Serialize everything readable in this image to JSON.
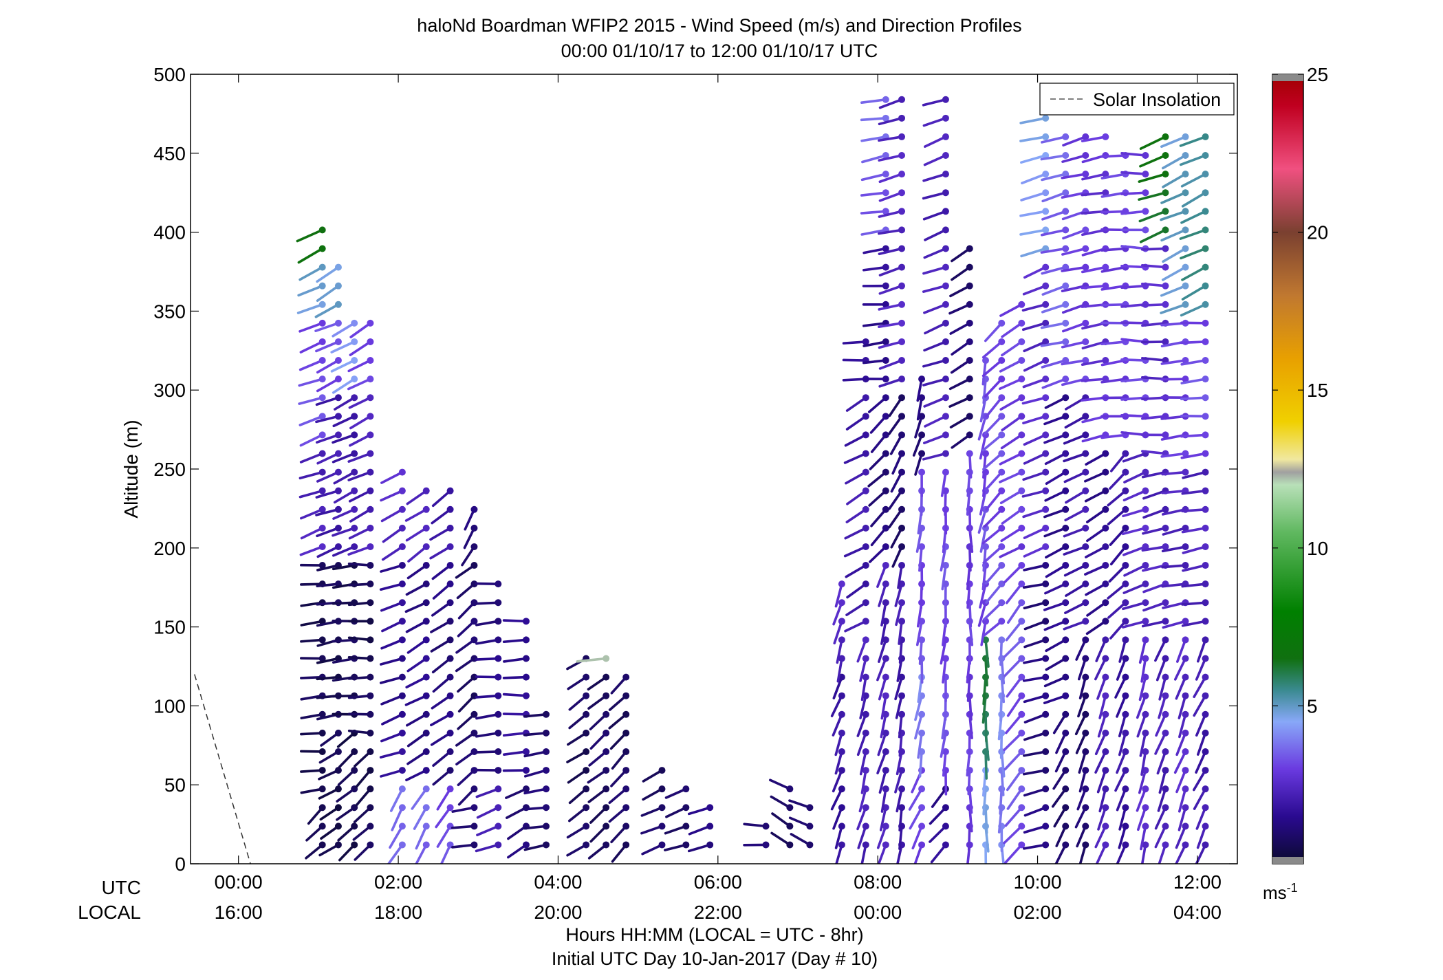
{
  "title_line1": "haloNd Boardman WFIP2 2015 - Wind Speed (m/s) and Direction Profiles",
  "title_line2": "00:00 01/10/17 to 12:00 01/10/17  UTC",
  "ylabel": "Altitude (m)",
  "row_utc": "UTC",
  "row_local": "LOCAL",
  "xlabel_line1": "Hours HH:MM  (LOCAL = UTC - 8hr)",
  "xlabel_line2": "Initial UTC Day 10-Jan-2017 (Day # 10)",
  "legend_label": "Solar Insolation",
  "colorbar_unit": "ms",
  "colorbar_unit_sup": "-1",
  "chart_data": {
    "type": "wind barb profile (time-height)",
    "x_range_hours_utc": [
      -0.6,
      12.5
    ],
    "ylim": [
      0,
      500
    ],
    "y_ticks": [
      "0",
      "50",
      "100",
      "150",
      "200",
      "250",
      "300",
      "350",
      "400",
      "450",
      "500"
    ],
    "x_ticks_utc": [
      "00:00",
      "02:00",
      "04:00",
      "06:00",
      "08:00",
      "10:00",
      "12:00"
    ],
    "x_ticks_local": [
      "16:00",
      "18:00",
      "20:00",
      "22:00",
      "00:00",
      "02:00",
      "04:00"
    ],
    "colorbar_range": [
      0,
      25
    ],
    "colorbar_ticks": [
      "5",
      "10",
      "15",
      "20",
      "25"
    ],
    "colorbar_stops": [
      {
        "v": 0,
        "color": "#0a0a2e"
      },
      {
        "v": 1.5,
        "color": "#2a0a90"
      },
      {
        "v": 3,
        "color": "#6a3ae0"
      },
      {
        "v": 4.5,
        "color": "#88a8f8"
      },
      {
        "v": 5.5,
        "color": "#3a8a90"
      },
      {
        "v": 6.5,
        "color": "#107010"
      },
      {
        "v": 8,
        "color": "#008000"
      },
      {
        "v": 10.5,
        "color": "#60b860"
      },
      {
        "v": 12,
        "color": "#b8e0b8"
      },
      {
        "v": 12.4,
        "color": "#a0a0a0"
      },
      {
        "v": 12.8,
        "color": "#f0e8a0"
      },
      {
        "v": 14,
        "color": "#f0d000"
      },
      {
        "v": 16,
        "color": "#e8a000"
      },
      {
        "v": 18,
        "color": "#c07830"
      },
      {
        "v": 20,
        "color": "#7a4030"
      },
      {
        "v": 22,
        "color": "#f05080"
      },
      {
        "v": 24,
        "color": "#c00020"
      },
      {
        "v": 25,
        "color": "#a00000"
      }
    ],
    "solar_insolation": {
      "x_hours_utc": [
        -0.55,
        0.15
      ],
      "y": [
        120,
        0
      ]
    },
    "profiles": [
      {
        "t": 1.05,
        "top": 410,
        "seg": [
          [
            0,
            40,
            0.4,
            45
          ],
          [
            40,
            200,
            0.6,
            85
          ],
          [
            200,
            260,
            2.3,
            70
          ],
          [
            260,
            350,
            3.2,
            70
          ],
          [
            350,
            380,
            4.8,
            65
          ],
          [
            380,
            410,
            6.5,
            65
          ]
        ]
      },
      {
        "t": 1.25,
        "top": 385,
        "seg": [
          [
            0,
            90,
            0.5,
            60
          ],
          [
            90,
            200,
            0.6,
            80
          ],
          [
            200,
            300,
            2.0,
            70
          ],
          [
            300,
            350,
            3.2,
            65
          ],
          [
            350,
            385,
            4.8,
            60
          ]
        ]
      },
      {
        "t": 1.45,
        "top": 350,
        "seg": [
          [
            0,
            90,
            0.5,
            50
          ],
          [
            90,
            200,
            0.6,
            85
          ],
          [
            200,
            300,
            2.0,
            65
          ],
          [
            300,
            350,
            4.2,
            60
          ]
        ]
      },
      {
        "t": 1.65,
        "top": 350,
        "seg": [
          [
            0,
            80,
            0.6,
            45
          ],
          [
            80,
            200,
            0.6,
            90
          ],
          [
            200,
            300,
            2.2,
            65
          ],
          [
            300,
            350,
            3.2,
            60
          ]
        ]
      },
      {
        "t": 2.05,
        "top": 255,
        "seg": [
          [
            0,
            50,
            3.8,
            30
          ],
          [
            50,
            200,
            1.5,
            70
          ],
          [
            200,
            255,
            2.5,
            60
          ]
        ]
      },
      {
        "t": 2.35,
        "top": 245,
        "seg": [
          [
            0,
            50,
            3.5,
            30
          ],
          [
            50,
            200,
            1.4,
            60
          ],
          [
            200,
            245,
            2.2,
            55
          ]
        ]
      },
      {
        "t": 2.65,
        "top": 245,
        "seg": [
          [
            0,
            50,
            3.2,
            30
          ],
          [
            50,
            200,
            1.2,
            55
          ],
          [
            200,
            245,
            2.0,
            55
          ]
        ]
      },
      {
        "t": 2.95,
        "top": 235,
        "seg": [
          [
            0,
            40,
            1.2,
            80
          ],
          [
            40,
            200,
            0.9,
            50
          ],
          [
            200,
            235,
            1.2,
            30
          ]
        ]
      },
      {
        "t": 3.25,
        "top": 180,
        "seg": [
          [
            0,
            50,
            2.0,
            70
          ],
          [
            50,
            180,
            1.3,
            85
          ]
        ]
      },
      {
        "t": 3.6,
        "top": 160,
        "seg": [
          [
            0,
            50,
            1.2,
            60
          ],
          [
            50,
            160,
            1.6,
            88
          ]
        ]
      },
      {
        "t": 3.85,
        "top": 100,
        "seg": [
          [
            0,
            100,
            1.0,
            80
          ]
        ]
      },
      {
        "t": 4.35,
        "top": 140,
        "seg": [
          [
            0,
            140,
            0.7,
            55
          ]
        ]
      },
      {
        "t": 4.6,
        "top": 130,
        "seg": [
          [
            0,
            120,
            0.8,
            50
          ],
          [
            120,
            130,
            12.4,
            85
          ]
        ]
      },
      {
        "t": 4.85,
        "top": 120,
        "seg": [
          [
            0,
            120,
            0.8,
            45
          ]
        ]
      },
      {
        "t": 5.3,
        "top": 70,
        "seg": [
          [
            0,
            70,
            0.9,
            65
          ]
        ]
      },
      {
        "t": 5.6,
        "top": 50,
        "seg": [
          [
            0,
            50,
            1.0,
            70
          ]
        ]
      },
      {
        "t": 5.9,
        "top": 40,
        "seg": [
          [
            0,
            40,
            1.2,
            75
          ]
        ]
      },
      {
        "t": 6.6,
        "top": 25,
        "seg": [
          [
            0,
            25,
            1.0,
            95
          ]
        ]
      },
      {
        "t": 6.9,
        "top": 55,
        "seg": [
          [
            0,
            55,
            0.9,
            120
          ]
        ]
      },
      {
        "t": 7.15,
        "top": 45,
        "seg": [
          [
            0,
            45,
            0.8,
            115
          ]
        ]
      },
      {
        "t": 7.55,
        "top": 180,
        "seg": [
          [
            0,
            120,
            1.8,
            20
          ],
          [
            120,
            180,
            2.4,
            15
          ]
        ]
      },
      {
        "t": 7.85,
        "top": 340,
        "seg": [
          [
            0,
            150,
            2.2,
            15
          ],
          [
            150,
            300,
            2.0,
            60
          ],
          [
            300,
            340,
            1.5,
            85
          ]
        ]
      },
      {
        "t": 8.1,
        "top": 490,
        "seg": [
          [
            0,
            200,
            2.2,
            15
          ],
          [
            200,
            300,
            1.2,
            45
          ],
          [
            300,
            390,
            1.5,
            85
          ],
          [
            390,
            490,
            3.5,
            80
          ]
        ]
      },
      {
        "t": 8.3,
        "top": 490,
        "seg": [
          [
            0,
            200,
            2.0,
            10
          ],
          [
            200,
            300,
            1.0,
            30
          ],
          [
            300,
            490,
            2.4,
            75
          ]
        ]
      },
      {
        "t": 8.55,
        "top": 310,
        "seg": [
          [
            0,
            60,
            3.0,
            25
          ],
          [
            60,
            120,
            4.0,
            10
          ],
          [
            120,
            250,
            3.2,
            5
          ],
          [
            250,
            310,
            1.2,
            15
          ]
        ]
      },
      {
        "t": 8.85,
        "top": 490,
        "seg": [
          [
            0,
            50,
            1.5,
            40
          ],
          [
            50,
            250,
            3.2,
            5
          ],
          [
            250,
            490,
            2.2,
            70
          ]
        ]
      },
      {
        "t": 9.15,
        "top": 390,
        "seg": [
          [
            0,
            260,
            3.0,
            0
          ],
          [
            260,
            390,
            1.0,
            60
          ]
        ]
      },
      {
        "t": 9.35,
        "top": 330,
        "seg": [
          [
            0,
            60,
            4.5,
            0
          ],
          [
            60,
            150,
            6.0,
            0
          ],
          [
            150,
            330,
            3.2,
            10
          ]
        ]
      },
      {
        "t": 9.55,
        "top": 350,
        "seg": [
          [
            0,
            150,
            4.0,
            0
          ],
          [
            150,
            350,
            3.2,
            45
          ]
        ]
      },
      {
        "t": 9.8,
        "top": 360,
        "seg": [
          [
            0,
            200,
            3.3,
            40
          ],
          [
            200,
            360,
            3.0,
            60
          ]
        ]
      },
      {
        "t": 10.1,
        "top": 480,
        "seg": [
          [
            0,
            200,
            1.2,
            75
          ],
          [
            200,
            380,
            2.5,
            70
          ],
          [
            380,
            480,
            4.5,
            75
          ]
        ]
      },
      {
        "t": 10.35,
        "top": 470,
        "seg": [
          [
            0,
            100,
            1.0,
            30
          ],
          [
            100,
            300,
            1.5,
            65
          ],
          [
            300,
            470,
            3.5,
            75
          ]
        ]
      },
      {
        "t": 10.6,
        "top": 470,
        "seg": [
          [
            0,
            150,
            1.0,
            20
          ],
          [
            150,
            300,
            2.0,
            65
          ],
          [
            300,
            470,
            3.0,
            75
          ]
        ]
      },
      {
        "t": 10.85,
        "top": 465,
        "seg": [
          [
            0,
            150,
            2.2,
            20
          ],
          [
            150,
            270,
            1.5,
            60
          ],
          [
            270,
            465,
            2.8,
            80
          ]
        ]
      },
      {
        "t": 11.1,
        "top": 460,
        "seg": [
          [
            0,
            150,
            1.8,
            20
          ],
          [
            150,
            270,
            1.8,
            45
          ],
          [
            270,
            460,
            3.0,
            85
          ]
        ]
      },
      {
        "t": 11.35,
        "top": 460,
        "seg": [
          [
            0,
            150,
            2.5,
            15
          ],
          [
            150,
            270,
            2.5,
            70
          ],
          [
            270,
            460,
            3.0,
            90
          ]
        ]
      },
      {
        "t": 11.6,
        "top": 470,
        "seg": [
          [
            0,
            150,
            2.2,
            20
          ],
          [
            150,
            250,
            2.3,
            75
          ],
          [
            250,
            390,
            2.5,
            90
          ],
          [
            390,
            470,
            6.5,
            70
          ]
        ]
      },
      {
        "t": 11.85,
        "top": 470,
        "seg": [
          [
            0,
            150,
            2.5,
            20
          ],
          [
            150,
            250,
            2.3,
            80
          ],
          [
            250,
            350,
            3.0,
            85
          ],
          [
            350,
            470,
            5.0,
            65
          ]
        ]
      },
      {
        "t": 12.1,
        "top": 470,
        "seg": [
          [
            0,
            150,
            2.0,
            25
          ],
          [
            150,
            250,
            2.3,
            80
          ],
          [
            250,
            350,
            3.2,
            85
          ],
          [
            350,
            470,
            5.5,
            65
          ]
        ]
      }
    ]
  }
}
